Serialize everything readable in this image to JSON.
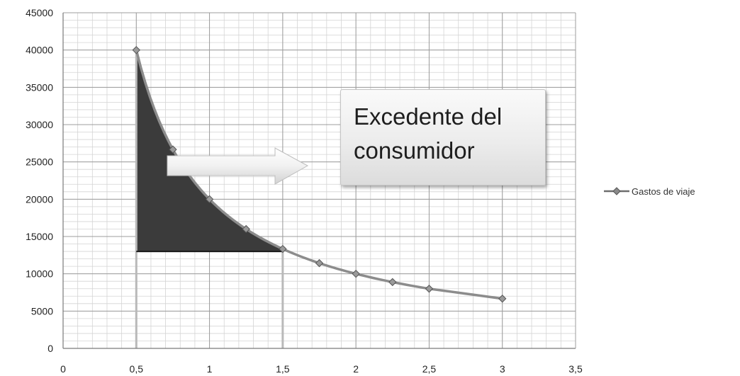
{
  "chart_data": {
    "type": "line",
    "title": "",
    "xlabel": "",
    "ylabel": "",
    "xlim": [
      0,
      3.5
    ],
    "ylim": [
      0,
      45000
    ],
    "x_ticks": [
      "0",
      "0,5",
      "1",
      "1,5",
      "2",
      "2,5",
      "3",
      "3,5"
    ],
    "y_ticks": [
      "0",
      "5000",
      "10000",
      "15000",
      "20000",
      "25000",
      "30000",
      "35000",
      "40000",
      "45000"
    ],
    "grid": true,
    "legend_position": "right",
    "series": [
      {
        "name": "Gastos de viaje",
        "color": "#8c8c8c",
        "x": [
          0.5,
          0.75,
          1,
          1.25,
          1.5,
          1.75,
          2,
          2.25,
          2.5,
          3
        ],
        "y": [
          40000,
          26667,
          20000,
          16000,
          13333,
          11429,
          10000,
          8889,
          8000,
          6667
        ]
      }
    ],
    "shaded_area": {
      "label": "Excedente del consumidor",
      "x_range": [
        0.5,
        1.5
      ],
      "price_level": 13000,
      "color": "#3b3b3b"
    },
    "annotation": {
      "lines": [
        "Excedente del",
        "consumidor"
      ],
      "arrow": "right"
    }
  }
}
